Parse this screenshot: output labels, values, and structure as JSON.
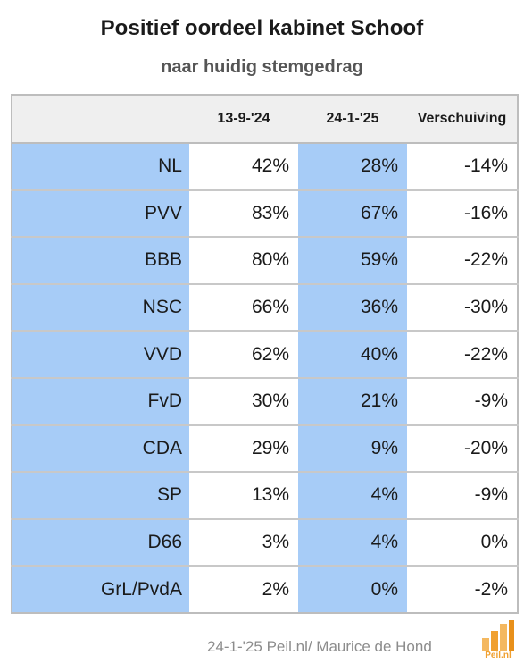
{
  "chart_data": {
    "type": "table",
    "title": "Positief oordeel kabinet Schoof",
    "subtitle": "naar huidig stemgedrag",
    "columns": [
      "",
      "13-9-'24",
      "24-1-'25",
      "Verschuiving"
    ],
    "rows": [
      {
        "party": "NL",
        "v1": "42%",
        "v2": "28%",
        "shift": "-14%"
      },
      {
        "party": "PVV",
        "v1": "83%",
        "v2": "67%",
        "shift": "-16%"
      },
      {
        "party": "BBB",
        "v1": "80%",
        "v2": "59%",
        "shift": "-22%"
      },
      {
        "party": "NSC",
        "v1": "66%",
        "v2": "36%",
        "shift": "-30%"
      },
      {
        "party": "VVD",
        "v1": "62%",
        "v2": "40%",
        "shift": "-22%"
      },
      {
        "party": "FvD",
        "v1": "30%",
        "v2": "21%",
        "shift": "-9%"
      },
      {
        "party": "CDA",
        "v1": "29%",
        "v2": "9%",
        "shift": "-20%"
      },
      {
        "party": "SP",
        "v1": "13%",
        "v2": "4%",
        "shift": "-9%"
      },
      {
        "party": "D66",
        "v1": "3%",
        "v2": "4%",
        "shift": "0%"
      },
      {
        "party": "GrL/PvdA",
        "v1": "2%",
        "v2": "0%",
        "shift": "-2%"
      }
    ]
  },
  "footer": {
    "source": "24-1-'25 Peil.nl/ Maurice de Hond",
    "logo_text": "Peil.nl",
    "logo_icon": "bar-chart-logo-icon"
  },
  "colors": {
    "highlight_column": "#a7ccf7",
    "header_background": "#efefef",
    "logo_orange": "#f0a030"
  }
}
